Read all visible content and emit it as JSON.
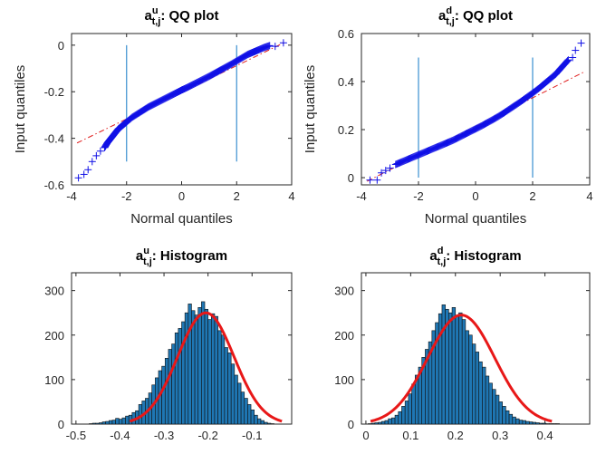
{
  "chart_data": [
    {
      "type": "scatter",
      "title": {
        "base": "a",
        "sup": "u",
        "sub": "t,j",
        "rest": ": QQ plot"
      },
      "xlabel": "Normal quantiles",
      "ylabel": "Input quantiles",
      "xlim": [
        -4,
        4
      ],
      "ylim": [
        -0.6,
        0.05
      ],
      "xticks": [
        -4,
        -2,
        0,
        2,
        4
      ],
      "xtick_labels": [
        "-4",
        "-2",
        "0",
        "2",
        "4"
      ],
      "yticks": [
        -0.6,
        -0.4,
        -0.2,
        0
      ],
      "ytick_labels": [
        "-0.6",
        "-0.4",
        "-0.2",
        "0"
      ],
      "vlines": [
        -2,
        2
      ],
      "vline_range": [
        -0.5,
        0.0
      ],
      "reference_line": {
        "x": [
          -3.8,
          3.8
        ],
        "y": [
          -0.42,
          0.015
        ]
      },
      "points": {
        "x": [
          -3.75,
          -3.55,
          -3.4,
          -3.25,
          -3.1,
          -2.95,
          -2.8,
          -2.7,
          -2.6,
          -2.5,
          -2.4,
          -2.3,
          -2.2,
          -2.1,
          -2.0,
          -1.8,
          -1.6,
          -1.4,
          -1.2,
          -1.0,
          -0.8,
          -0.6,
          -0.4,
          -0.2,
          0.0,
          0.2,
          0.4,
          0.6,
          0.8,
          1.0,
          1.2,
          1.4,
          1.6,
          1.8,
          2.0,
          2.2,
          2.4,
          2.6,
          2.8,
          3.0,
          3.2,
          3.4,
          3.7
        ],
        "y": [
          -0.57,
          -0.555,
          -0.535,
          -0.5,
          -0.475,
          -0.455,
          -0.44,
          -0.42,
          -0.405,
          -0.39,
          -0.375,
          -0.36,
          -0.35,
          -0.34,
          -0.33,
          -0.31,
          -0.295,
          -0.28,
          -0.265,
          -0.253,
          -0.241,
          -0.229,
          -0.217,
          -0.205,
          -0.193,
          -0.182,
          -0.17,
          -0.158,
          -0.146,
          -0.134,
          -0.121,
          -0.108,
          -0.095,
          -0.082,
          -0.068,
          -0.054,
          -0.04,
          -0.03,
          -0.02,
          -0.01,
          -0.002,
          -0.005,
          0.01
        ]
      }
    },
    {
      "type": "scatter",
      "title": {
        "base": "a",
        "sup": "d",
        "sub": "t,j",
        "rest": ": QQ plot"
      },
      "xlabel": "Normal quantiles",
      "ylabel": "Input quantiles",
      "xlim": [
        -4,
        4
      ],
      "ylim": [
        -0.03,
        0.6
      ],
      "xticks": [
        -4,
        -2,
        0,
        2,
        4
      ],
      "xtick_labels": [
        "-4",
        "-2",
        "0",
        "2",
        "4"
      ],
      "yticks": [
        0,
        0.2,
        0.4,
        0.6
      ],
      "ytick_labels": [
        "0",
        "0.2",
        "0.4",
        "0.6"
      ],
      "vlines": [
        -2,
        2
      ],
      "vline_range": [
        0.0,
        0.5
      ],
      "reference_line": {
        "x": [
          -3.8,
          3.8
        ],
        "y": [
          -0.015,
          0.44
        ]
      },
      "points": {
        "x": [
          -3.7,
          -3.45,
          -3.3,
          -3.15,
          -3.0,
          -2.8,
          -2.6,
          -2.4,
          -2.2,
          -2.0,
          -1.8,
          -1.6,
          -1.4,
          -1.2,
          -1.0,
          -0.8,
          -0.6,
          -0.4,
          -0.2,
          0.0,
          0.2,
          0.4,
          0.6,
          0.8,
          1.0,
          1.2,
          1.4,
          1.6,
          1.8,
          2.0,
          2.2,
          2.4,
          2.6,
          2.8,
          2.95,
          3.1,
          3.25,
          3.4,
          3.5,
          3.7
        ],
        "y": [
          -0.01,
          -0.01,
          0.02,
          0.03,
          0.04,
          0.055,
          0.065,
          0.075,
          0.085,
          0.095,
          0.105,
          0.115,
          0.125,
          0.135,
          0.145,
          0.155,
          0.167,
          0.179,
          0.191,
          0.203,
          0.215,
          0.228,
          0.241,
          0.255,
          0.27,
          0.286,
          0.302,
          0.318,
          0.335,
          0.352,
          0.37,
          0.39,
          0.41,
          0.43,
          0.45,
          0.47,
          0.49,
          0.5,
          0.53,
          0.56
        ]
      }
    },
    {
      "type": "bar",
      "title": {
        "base": "a",
        "sup": "u",
        "sub": "t,j",
        "rest": ": Histogram"
      },
      "xlim": [
        -0.51,
        -0.01
      ],
      "ylim": [
        0,
        340
      ],
      "xticks": [
        -0.5,
        -0.4,
        -0.3,
        -0.2,
        -0.1
      ],
      "xtick_labels": [
        "-0.5",
        "-0.4",
        "-0.3",
        "-0.2",
        "-0.1"
      ],
      "yticks": [
        0,
        100,
        200,
        300
      ],
      "ytick_labels": [
        "0",
        "100",
        "200",
        "300"
      ],
      "bin_start": -0.47,
      "bin_width": 0.0075,
      "values": [
        1,
        2,
        2,
        3,
        5,
        6,
        8,
        9,
        13,
        11,
        14,
        18,
        20,
        26,
        30,
        44,
        52,
        58,
        70,
        88,
        104,
        120,
        130,
        148,
        168,
        180,
        205,
        215,
        230,
        250,
        270,
        255,
        245,
        262,
        275,
        258,
        235,
        248,
        242,
        210,
        200,
        172,
        160,
        135,
        110,
        92,
        72,
        58,
        44,
        32,
        20,
        12,
        8,
        4,
        2,
        1
      ],
      "fit": {
        "type": "normal",
        "mean": -0.205,
        "sd": 0.064,
        "peak": 250
      }
    },
    {
      "type": "bar",
      "title": {
        "base": "a",
        "sup": "d",
        "sub": "t,j",
        "rest": ": Histogram"
      },
      "xlim": [
        -0.01,
        0.5
      ],
      "ylim": [
        0,
        340
      ],
      "xticks": [
        0,
        0.1,
        0.2,
        0.3,
        0.4
      ],
      "xtick_labels": [
        "0",
        "0.1",
        "0.2",
        "0.3",
        "0.4"
      ],
      "yticks": [
        0,
        100,
        200,
        300
      ],
      "ytick_labels": [
        "0",
        "100",
        "200",
        "300"
      ],
      "bin_start": 0.005,
      "bin_width": 0.0075,
      "values": [
        1,
        2,
        3,
        4,
        6,
        8,
        12,
        14,
        20,
        28,
        40,
        52,
        68,
        90,
        110,
        128,
        150,
        168,
        185,
        210,
        228,
        248,
        268,
        258,
        250,
        262,
        245,
        250,
        235,
        210,
        200,
        180,
        162,
        140,
        128,
        108,
        92,
        78,
        65,
        50,
        40,
        30,
        22,
        16,
        12,
        9,
        8,
        6,
        5,
        4,
        3,
        2,
        2,
        1,
        1,
        1,
        1
      ],
      "fit": {
        "type": "normal",
        "mean": 0.213,
        "sd": 0.075,
        "peak": 245
      }
    }
  ]
}
